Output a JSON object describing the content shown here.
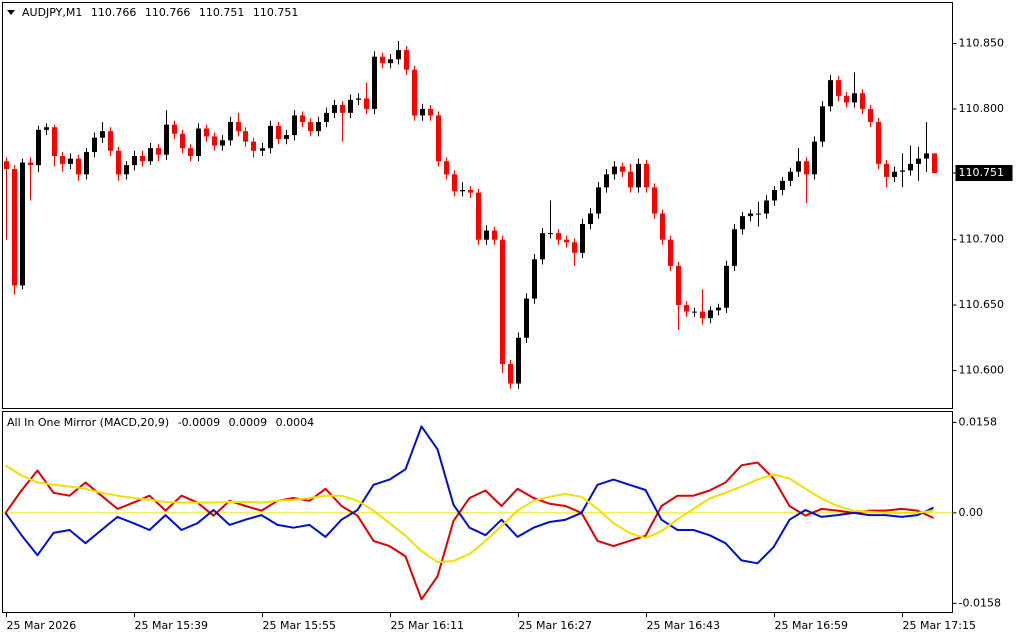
{
  "chart_data": [
    {
      "type": "candlestick",
      "title": "AUDJPY,M1",
      "up_color": "#000000",
      "down_color": "#ff0000",
      "candles": [
        [
          110.76,
          110.763,
          110.7,
          110.754
        ],
        [
          110.754,
          110.757,
          110.658,
          110.665
        ],
        [
          110.665,
          110.762,
          110.662,
          110.759
        ],
        [
          110.759,
          110.763,
          110.73,
          110.757
        ],
        [
          110.757,
          110.787,
          110.752,
          110.784
        ],
        [
          110.784,
          110.789,
          110.78,
          110.786
        ],
        [
          110.786,
          110.788,
          110.756,
          110.764
        ],
        [
          110.764,
          110.767,
          110.752,
          110.758
        ],
        [
          110.758,
          110.766,
          110.754,
          110.762
        ],
        [
          110.762,
          110.765,
          110.745,
          110.75
        ],
        [
          110.75,
          110.77,
          110.746,
          110.767
        ],
        [
          110.767,
          110.782,
          110.763,
          110.778
        ],
        [
          110.778,
          110.79,
          110.774,
          110.783
        ],
        [
          110.783,
          110.786,
          110.764,
          110.768
        ],
        [
          110.768,
          110.771,
          110.745,
          110.75
        ],
        [
          110.75,
          110.76,
          110.746,
          110.757
        ],
        [
          110.757,
          110.768,
          110.753,
          110.764
        ],
        [
          110.764,
          110.768,
          110.756,
          110.76
        ],
        [
          110.76,
          110.774,
          110.757,
          110.77
        ],
        [
          110.77,
          110.773,
          110.76,
          110.765
        ],
        [
          110.765,
          110.799,
          110.761,
          110.788
        ],
        [
          110.788,
          110.791,
          110.777,
          110.781
        ],
        [
          110.781,
          110.784,
          110.766,
          110.77
        ],
        [
          110.77,
          110.773,
          110.76,
          110.764
        ],
        [
          110.764,
          110.789,
          110.76,
          110.785
        ],
        [
          110.785,
          110.788,
          110.775,
          110.779
        ],
        [
          110.779,
          110.782,
          110.768,
          110.772
        ],
        [
          110.772,
          110.78,
          110.768,
          110.776
        ],
        [
          110.776,
          110.794,
          110.772,
          110.79
        ],
        [
          110.79,
          110.797,
          110.779,
          110.783
        ],
        [
          110.783,
          110.786,
          110.771,
          110.775
        ],
        [
          110.775,
          110.778,
          110.763,
          110.768
        ],
        [
          110.768,
          110.774,
          110.764,
          110.77
        ],
        [
          110.77,
          110.791,
          110.766,
          110.787
        ],
        [
          110.787,
          110.79,
          110.773,
          110.777
        ],
        [
          110.777,
          110.784,
          110.773,
          110.78
        ],
        [
          110.78,
          110.799,
          110.776,
          110.795
        ],
        [
          110.795,
          110.798,
          110.786,
          110.79
        ],
        [
          110.79,
          110.793,
          110.779,
          110.783
        ],
        [
          110.783,
          110.794,
          110.779,
          110.79
        ],
        [
          110.79,
          110.801,
          110.786,
          110.797
        ],
        [
          110.797,
          110.807,
          110.793,
          110.803
        ],
        [
          110.803,
          110.806,
          110.775,
          110.797
        ],
        [
          110.797,
          110.811,
          110.793,
          110.807
        ],
        [
          110.807,
          110.812,
          110.803,
          110.808
        ],
        [
          110.808,
          110.82,
          110.796,
          110.8
        ],
        [
          110.8,
          110.844,
          110.796,
          110.84
        ],
        [
          110.84,
          110.843,
          110.831,
          110.835
        ],
        [
          110.835,
          110.842,
          110.831,
          110.838
        ],
        [
          110.838,
          110.852,
          110.834,
          110.845
        ],
        [
          110.845,
          110.848,
          110.826,
          110.83
        ],
        [
          110.83,
          110.833,
          110.791,
          110.795
        ],
        [
          110.795,
          110.804,
          110.791,
          110.8
        ],
        [
          110.8,
          110.803,
          110.791,
          110.795
        ],
        [
          110.795,
          110.798,
          110.756,
          110.76
        ],
        [
          110.76,
          110.763,
          110.746,
          110.75
        ],
        [
          110.75,
          110.753,
          110.733,
          110.737
        ],
        [
          110.737,
          110.744,
          110.733,
          110.738
        ],
        [
          110.738,
          110.741,
          110.732,
          110.736
        ],
        [
          110.736,
          110.739,
          110.696,
          110.7
        ],
        [
          110.7,
          110.711,
          110.696,
          110.707
        ],
        [
          110.707,
          110.71,
          110.696,
          110.7
        ],
        [
          110.7,
          110.703,
          110.598,
          110.605
        ],
        [
          110.605,
          110.608,
          110.586,
          110.59
        ],
        [
          110.59,
          110.629,
          110.586,
          110.625
        ],
        [
          110.625,
          110.659,
          110.621,
          110.655
        ],
        [
          110.655,
          110.689,
          110.651,
          110.685
        ],
        [
          110.685,
          110.709,
          110.681,
          110.705
        ],
        [
          110.705,
          110.73,
          110.701,
          110.705
        ],
        [
          110.705,
          110.708,
          110.696,
          110.7
        ],
        [
          110.7,
          110.703,
          110.694,
          110.698
        ],
        [
          110.698,
          110.701,
          110.68,
          110.69
        ],
        [
          110.69,
          110.716,
          110.686,
          110.712
        ],
        [
          110.712,
          110.724,
          110.708,
          110.72
        ],
        [
          110.72,
          110.744,
          110.716,
          110.74
        ],
        [
          110.74,
          110.754,
          110.736,
          110.75
        ],
        [
          110.75,
          110.76,
          110.746,
          110.756
        ],
        [
          110.756,
          110.759,
          110.748,
          110.752
        ],
        [
          110.752,
          110.758,
          110.736,
          110.74
        ],
        [
          110.74,
          110.762,
          110.736,
          110.758
        ],
        [
          110.758,
          110.761,
          110.736,
          110.74
        ],
        [
          110.74,
          110.743,
          110.716,
          110.72
        ],
        [
          110.72,
          110.723,
          110.696,
          110.7
        ],
        [
          110.7,
          110.703,
          110.676,
          110.68
        ],
        [
          110.68,
          110.683,
          110.631,
          110.65
        ],
        [
          110.65,
          110.653,
          110.641,
          110.645
        ],
        [
          110.645,
          110.648,
          110.641,
          110.645
        ],
        [
          110.645,
          110.662,
          110.635,
          110.64
        ],
        [
          110.64,
          110.649,
          110.636,
          110.646
        ],
        [
          110.646,
          110.651,
          110.642,
          110.648
        ],
        [
          110.648,
          110.684,
          110.644,
          110.68
        ],
        [
          110.68,
          110.712,
          110.676,
          110.708
        ],
        [
          110.708,
          110.721,
          110.704,
          110.718
        ],
        [
          110.718,
          110.723,
          110.714,
          110.72
        ],
        [
          110.72,
          110.729,
          110.71,
          110.72
        ],
        [
          110.72,
          110.734,
          110.716,
          110.73
        ],
        [
          110.73,
          110.741,
          110.726,
          110.738
        ],
        [
          110.738,
          110.748,
          110.734,
          110.745
        ],
        [
          110.745,
          110.755,
          110.741,
          110.752
        ],
        [
          110.752,
          110.77,
          110.748,
          110.76
        ],
        [
          110.76,
          110.763,
          110.728,
          110.75
        ],
        [
          110.75,
          110.779,
          110.746,
          110.775
        ],
        [
          110.775,
          110.806,
          110.771,
          110.802
        ],
        [
          110.802,
          110.826,
          110.798,
          110.822
        ],
        [
          110.822,
          110.825,
          110.806,
          110.81
        ],
        [
          110.81,
          110.813,
          110.801,
          110.805
        ],
        [
          110.805,
          110.828,
          110.801,
          110.812
        ],
        [
          110.812,
          110.815,
          110.796,
          110.8
        ],
        [
          110.8,
          110.803,
          110.786,
          110.79
        ],
        [
          110.79,
          110.793,
          110.754,
          110.758
        ],
        [
          110.758,
          110.761,
          110.74,
          110.748
        ],
        [
          110.748,
          110.756,
          110.744,
          110.752
        ],
        [
          110.752,
          110.766,
          110.74,
          110.753
        ],
        [
          110.753,
          110.772,
          110.749,
          110.758
        ],
        [
          110.758,
          110.771,
          110.745,
          110.762
        ],
        [
          110.762,
          110.79,
          110.752,
          110.766
        ],
        [
          110.766,
          110.766,
          110.751,
          110.751
        ]
      ],
      "xlim": [
        -0.375,
        118.375
      ],
      "ylim": [
        110.5709,
        110.8814
      ],
      "yticks": [
        {
          "value": 110.85,
          "label": "110.850"
        },
        {
          "value": 110.8,
          "label": "110.800"
        },
        110.751,
        {
          "value": 110.7,
          "label": "110.700"
        },
        {
          "value": 110.65,
          "label": "110.650"
        },
        {
          "value": 110.6,
          "label": "110.600"
        }
      ],
      "xticks": [
        {
          "value": 0,
          "label": "25 Mar 2026"
        },
        {
          "value": 16,
          "label": "25 Mar 15:39"
        },
        {
          "value": 32,
          "label": "25 Mar 15:55"
        },
        {
          "value": 48,
          "label": "25 Mar 16:11"
        },
        {
          "value": 64,
          "label": "25 Mar 16:27"
        },
        {
          "value": 80,
          "label": "25 Mar 16:43"
        },
        {
          "value": 96,
          "label": "25 Mar 16:59"
        },
        {
          "value": 112,
          "label": "25 Mar 17:15"
        }
      ]
    },
    {
      "type": "line",
      "title": "All In One Mirror (MACD,20,9)",
      "x": [
        0,
        2,
        4,
        6,
        8,
        10,
        12,
        14,
        16,
        18,
        20,
        22,
        24,
        26,
        28,
        30,
        32,
        34,
        36,
        38,
        40,
        42,
        44,
        46,
        48,
        50,
        52,
        54,
        56,
        58,
        60,
        62,
        64,
        66,
        68,
        70,
        72,
        74,
        76,
        78,
        80,
        82,
        84,
        86,
        88,
        90,
        92,
        94,
        96,
        98,
        100,
        102,
        104,
        106,
        108,
        110,
        112,
        114,
        116
      ],
      "xlim": [
        -0.375,
        118.375
      ],
      "ylim": [
        -0.0174,
        0.0177
      ],
      "yticks": [
        0.0158,
        {
          "value": 0,
          "label": "0.00"
        },
        -0.0158
      ],
      "zero_line_color": "#e6e600",
      "series": [
        {
          "color": "#e00000",
          "values": [
            0,
            0.0039,
            0.0074,
            0.0035,
            0.003,
            0.0053,
            0.003,
            0.0007,
            0.0018,
            0.003,
            0.0004,
            0.003,
            0.0018,
            -0.0005,
            0.0021,
            0.0012,
            0.0004,
            0.0021,
            0.0026,
            0.0021,
            0.0042,
            0.0012,
            -0.0005,
            -0.0049,
            -0.0058,
            -0.0076,
            -0.0151,
            -0.0111,
            -0.0014,
            0.0026,
            0.0039,
            0.0012,
            0.0042,
            0.0026,
            0.0016,
            0.0012,
            0,
            -0.0049,
            -0.0058,
            -0.0049,
            -0.004,
            0.0012,
            0.003,
            0.003,
            0.0039,
            0.0053,
            0.0083,
            0.0088,
            0.006,
            0.0012,
            -0.0005,
            0.0007,
            0.0004,
            0,
            0.0004,
            0.0004,
            0.0007,
            0.0004,
            -0.0009
          ]
        },
        {
          "color": "#0010d0",
          "values": [
            0,
            -0.0039,
            -0.0074,
            -0.0035,
            -0.003,
            -0.0053,
            -0.003,
            -0.0007,
            -0.0018,
            -0.003,
            -0.0004,
            -0.003,
            -0.0018,
            0.0005,
            -0.0021,
            -0.0012,
            -0.0004,
            -0.0021,
            -0.0026,
            -0.0021,
            -0.0042,
            -0.0012,
            0.0005,
            0.0049,
            0.0058,
            0.0076,
            0.0151,
            0.0111,
            0.0014,
            -0.0026,
            -0.0039,
            -0.0012,
            -0.0042,
            -0.0026,
            -0.0016,
            -0.0012,
            0,
            0.0049,
            0.0058,
            0.0049,
            0.004,
            -0.0012,
            -0.003,
            -0.003,
            -0.0039,
            -0.0053,
            -0.0083,
            -0.0088,
            -0.006,
            -0.0012,
            0.0005,
            -0.0007,
            -0.0004,
            0,
            -0.0004,
            -0.0004,
            -0.0007,
            -0.0004,
            0.0009
          ]
        },
        {
          "color": "#f0e000",
          "values": [
            0.0083,
            0.0065,
            0.0053,
            0.0049,
            0.0046,
            0.0042,
            0.0035,
            0.003,
            0.0026,
            0.0023,
            0.0019,
            0.0018,
            0.0018,
            0.0018,
            0.0019,
            0.0019,
            0.0018,
            0.0021,
            0.0023,
            0.0026,
            0.003,
            0.003,
            0.0021,
            0.0004,
            -0.0018,
            -0.004,
            -0.0067,
            -0.0086,
            -0.0084,
            -0.0072,
            -0.0049,
            -0.0023,
            0.0004,
            0.0021,
            0.0028,
            0.0033,
            0.0028,
            0.0007,
            -0.0018,
            -0.0035,
            -0.0044,
            -0.0032,
            -0.0011,
            0.0007,
            0.0025,
            0.0035,
            0.0046,
            0.0058,
            0.0067,
            0.006,
            0.0042,
            0.0025,
            0.0012,
            0.0004,
            0.0002,
            0,
            0,
            0,
            0.0004
          ]
        }
      ]
    }
  ]
}
